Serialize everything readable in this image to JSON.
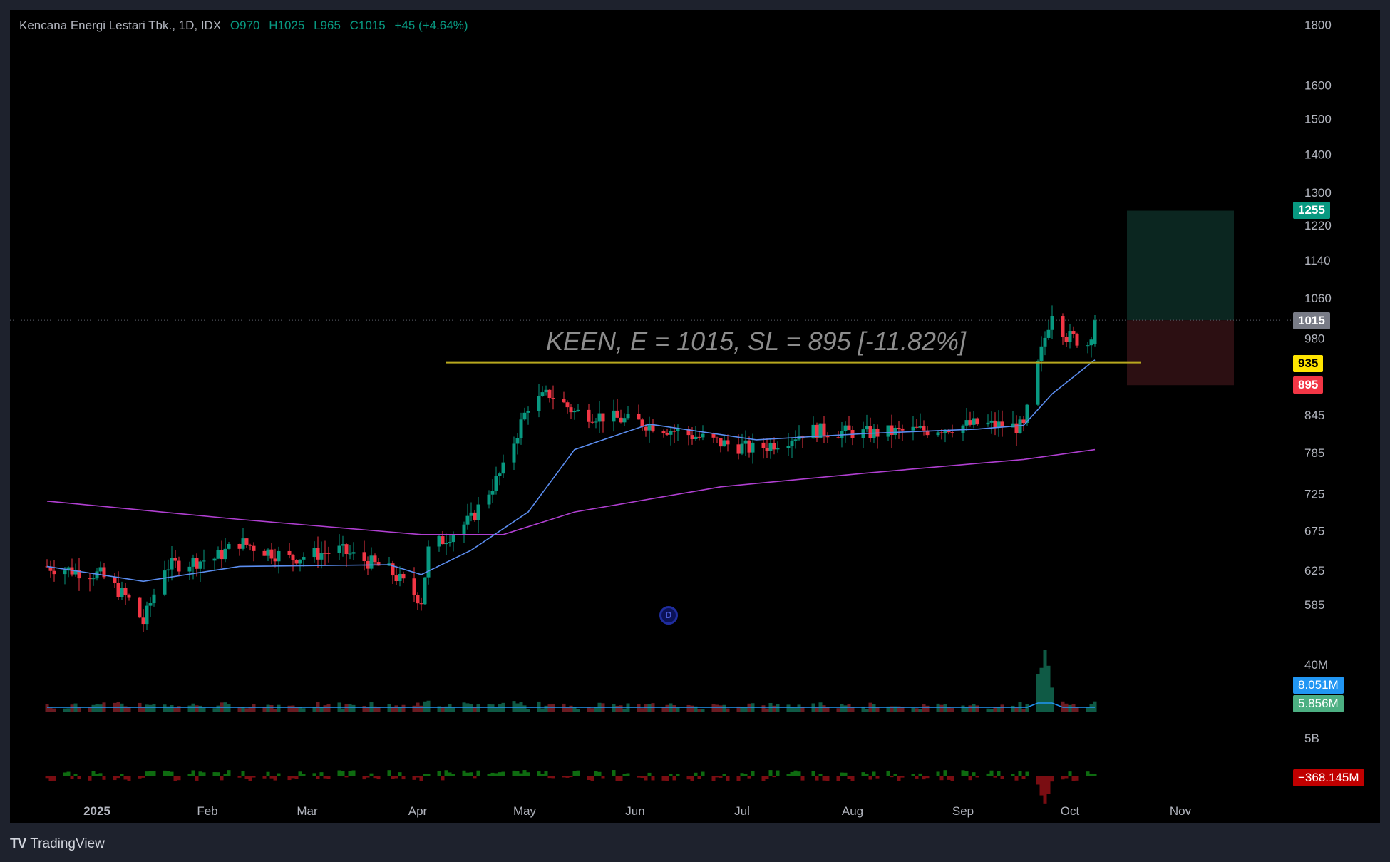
{
  "header": {
    "symbol": "Kencana Energi Lestari Tbk., 1D, IDX",
    "open": "O970",
    "high": "H1025",
    "low": "L965",
    "close": "C1015",
    "change": "+45 (+4.64%)"
  },
  "annotation": "KEEN, E = 1015, SL = 895 [-11.82%]",
  "marker_label": "D",
  "brand": {
    "logo": "TV",
    "name": "TradingView"
  },
  "price_tags": [
    {
      "name": "target",
      "value": "1255",
      "color": "#089981"
    },
    {
      "name": "last-price",
      "value": "1015",
      "color": "#787b86"
    },
    {
      "name": "resistance",
      "value": "935",
      "color": "#ffe500",
      "text": "#000000"
    },
    {
      "name": "stop-loss",
      "value": "895",
      "color": "#f23645"
    },
    {
      "name": "volume-ma",
      "value": "8.051M",
      "color": "#2196f3"
    },
    {
      "name": "volume",
      "value": "5.856M",
      "color": "#4caf82"
    },
    {
      "name": "net-flow",
      "value": "−368.145M",
      "color": "#c00000"
    }
  ],
  "colors": {
    "up": "#089981",
    "down": "#f23645",
    "ma_fast": "#5b8def",
    "ma_slow": "#b03fd1",
    "resistance": "#b8a81e",
    "target_zone": "#0b2620",
    "stop_zone": "#2c0f12"
  },
  "chart_data": {
    "type": "candlestick",
    "title": "Kencana Energi Lestari Tbk., 1D, IDX",
    "x_ticks": [
      "2025",
      "Feb",
      "Mar",
      "Apr",
      "May",
      "Jun",
      "Jul",
      "Aug",
      "Sep",
      "Oct",
      "Nov"
    ],
    "y_scale": "log",
    "y_ticks": [
      1800,
      1600,
      1500,
      1400,
      1300,
      1220,
      1140,
      1060,
      980,
      845,
      785,
      725,
      675,
      625,
      585
    ],
    "volume_ticks": [
      "40M",
      "5B"
    ],
    "last": {
      "open": 970,
      "high": 1025,
      "low": 965,
      "close": 1015,
      "change": 45,
      "change_pct": 4.64
    },
    "lines": {
      "resistance": 935,
      "entry": 1015,
      "stop_loss": 895,
      "target": 1255
    },
    "close_path": [
      {
        "date": "2024-12-18",
        "close": 630
      },
      {
        "date": "2025-01-02",
        "close": 620
      },
      {
        "date": "2025-01-10",
        "close": 590
      },
      {
        "date": "2025-01-14",
        "close": 565
      },
      {
        "date": "2025-01-20",
        "close": 630
      },
      {
        "date": "2025-02-03",
        "close": 640
      },
      {
        "date": "2025-02-10",
        "close": 660
      },
      {
        "date": "2025-02-24",
        "close": 640
      },
      {
        "date": "2025-03-10",
        "close": 650
      },
      {
        "date": "2025-03-24",
        "close": 625
      },
      {
        "date": "2025-04-02",
        "close": 590
      },
      {
        "date": "2025-04-04",
        "close": 650
      },
      {
        "date": "2025-04-16",
        "close": 690
      },
      {
        "date": "2025-04-25",
        "close": 760
      },
      {
        "date": "2025-05-02",
        "close": 860
      },
      {
        "date": "2025-05-08",
        "close": 880
      },
      {
        "date": "2025-05-15",
        "close": 850
      },
      {
        "date": "2025-06-05",
        "close": 830
      },
      {
        "date": "2025-06-25",
        "close": 800
      },
      {
        "date": "2025-07-05",
        "close": 790
      },
      {
        "date": "2025-07-20",
        "close": 820
      },
      {
        "date": "2025-08-05",
        "close": 815
      },
      {
        "date": "2025-08-20",
        "close": 820
      },
      {
        "date": "2025-09-05",
        "close": 830
      },
      {
        "date": "2025-09-18",
        "close": 825
      },
      {
        "date": "2025-09-23",
        "close": 955
      },
      {
        "date": "2025-09-26",
        "close": 1035
      },
      {
        "date": "2025-09-30",
        "close": 985
      },
      {
        "date": "2025-10-06",
        "close": 970
      },
      {
        "date": "2025-10-08",
        "close": 1015
      }
    ],
    "ma_fast_path": [
      {
        "date": "2024-12-18",
        "value": 630
      },
      {
        "date": "2025-01-14",
        "value": 612
      },
      {
        "date": "2025-02-10",
        "value": 630
      },
      {
        "date": "2025-03-24",
        "value": 632
      },
      {
        "date": "2025-04-02",
        "value": 620
      },
      {
        "date": "2025-04-16",
        "value": 650
      },
      {
        "date": "2025-05-02",
        "value": 700
      },
      {
        "date": "2025-05-15",
        "value": 790
      },
      {
        "date": "2025-06-05",
        "value": 830
      },
      {
        "date": "2025-07-05",
        "value": 805
      },
      {
        "date": "2025-08-05",
        "value": 815
      },
      {
        "date": "2025-09-05",
        "value": 822
      },
      {
        "date": "2025-09-18",
        "value": 828
      },
      {
        "date": "2025-09-26",
        "value": 880
      },
      {
        "date": "2025-10-08",
        "value": 940
      }
    ],
    "ma_slow_path": [
      {
        "date": "2024-12-18",
        "value": 715
      },
      {
        "date": "2025-02-10",
        "value": 690
      },
      {
        "date": "2025-04-02",
        "value": 670
      },
      {
        "date": "2025-04-25",
        "value": 670
      },
      {
        "date": "2025-05-15",
        "value": 700
      },
      {
        "date": "2025-06-25",
        "value": 735
      },
      {
        "date": "2025-08-05",
        "value": 755
      },
      {
        "date": "2025-09-18",
        "value": 775
      },
      {
        "date": "2025-10-08",
        "value": 790
      }
    ]
  }
}
